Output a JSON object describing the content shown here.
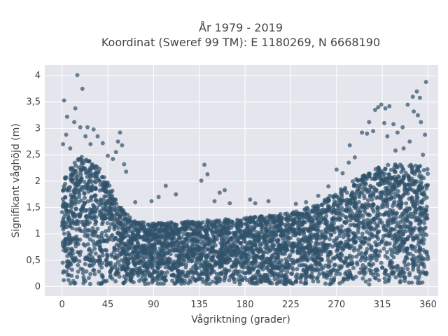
{
  "chart_data": {
    "type": "scatter",
    "title": "År 1979 - 2019",
    "subtitle": "Koordinat (Sweref 99 TM): E 1180269, N 6668190",
    "xlabel": "Vågriktning (grader)",
    "ylabel": "Signifikant våghöjd (m)",
    "xlim": [
      -17,
      370
    ],
    "ylim": [
      -0.18,
      4.2
    ],
    "xticks": [
      0,
      45,
      90,
      135,
      180,
      225,
      270,
      315,
      360
    ],
    "xtick_labels": [
      "0",
      "45",
      "90",
      "135",
      "180",
      "225",
      "270",
      "315",
      "360"
    ],
    "yticks": [
      0,
      0.5,
      1,
      1.5,
      2,
      2.5,
      3,
      3.5,
      4
    ],
    "ytick_labels": [
      "0",
      "0,5",
      "1",
      "1,5",
      "2",
      "2,5",
      "3",
      "3,5",
      "4"
    ],
    "grid": true,
    "marker_color": "#2f5169",
    "plot_background": "#e5e5ee",
    "envelope": [
      {
        "x": 0,
        "y": 2.1
      },
      {
        "x": 10,
        "y": 2.3
      },
      {
        "x": 20,
        "y": 2.5
      },
      {
        "x": 30,
        "y": 2.4
      },
      {
        "x": 40,
        "y": 2.2
      },
      {
        "x": 50,
        "y": 1.8
      },
      {
        "x": 60,
        "y": 1.45
      },
      {
        "x": 70,
        "y": 1.25
      },
      {
        "x": 90,
        "y": 1.2
      },
      {
        "x": 135,
        "y": 1.25
      },
      {
        "x": 180,
        "y": 1.3
      },
      {
        "x": 225,
        "y": 1.4
      },
      {
        "x": 250,
        "y": 1.55
      },
      {
        "x": 270,
        "y": 1.8
      },
      {
        "x": 290,
        "y": 2.05
      },
      {
        "x": 315,
        "y": 2.3
      },
      {
        "x": 340,
        "y": 2.35
      },
      {
        "x": 360,
        "y": 2.25
      }
    ],
    "outliers": [
      {
        "x": 15,
        "y": 4.01
      },
      {
        "x": 20,
        "y": 3.75
      },
      {
        "x": 2,
        "y": 3.53
      },
      {
        "x": 13,
        "y": 3.38
      },
      {
        "x": 5,
        "y": 3.22
      },
      {
        "x": 12,
        "y": 3.12
      },
      {
        "x": 18,
        "y": 3.02
      },
      {
        "x": 25,
        "y": 3.02
      },
      {
        "x": 31,
        "y": 2.98
      },
      {
        "x": 4,
        "y": 2.88
      },
      {
        "x": 35,
        "y": 2.85
      },
      {
        "x": 28,
        "y": 2.7
      },
      {
        "x": 40,
        "y": 2.72
      },
      {
        "x": 1,
        "y": 2.7
      },
      {
        "x": 53,
        "y": 2.55
      },
      {
        "x": 55,
        "y": 2.75
      },
      {
        "x": 57,
        "y": 2.92
      },
      {
        "x": 59,
        "y": 2.68
      },
      {
        "x": 50,
        "y": 2.42
      },
      {
        "x": 61,
        "y": 2.32
      },
      {
        "x": 63,
        "y": 2.18
      },
      {
        "x": 140,
        "y": 2.31
      },
      {
        "x": 143,
        "y": 2.13
      },
      {
        "x": 137,
        "y": 2.01
      },
      {
        "x": 102,
        "y": 1.91
      },
      {
        "x": 112,
        "y": 1.75
      },
      {
        "x": 160,
        "y": 1.83
      },
      {
        "x": 155,
        "y": 1.78
      },
      {
        "x": 150,
        "y": 1.62
      },
      {
        "x": 165,
        "y": 1.58
      },
      {
        "x": 95,
        "y": 1.7
      },
      {
        "x": 88,
        "y": 1.62
      },
      {
        "x": 72,
        "y": 1.6
      },
      {
        "x": 185,
        "y": 1.65
      },
      {
        "x": 190,
        "y": 1.58
      },
      {
        "x": 203,
        "y": 1.62
      },
      {
        "x": 230,
        "y": 1.57
      },
      {
        "x": 240,
        "y": 1.6
      },
      {
        "x": 252,
        "y": 1.72
      },
      {
        "x": 262,
        "y": 1.9
      },
      {
        "x": 270,
        "y": 2.22
      },
      {
        "x": 276,
        "y": 2.15
      },
      {
        "x": 282,
        "y": 2.35
      },
      {
        "x": 288,
        "y": 2.45
      },
      {
        "x": 283,
        "y": 2.68
      },
      {
        "x": 295,
        "y": 2.92
      },
      {
        "x": 300,
        "y": 2.9
      },
      {
        "x": 302,
        "y": 3.12
      },
      {
        "x": 306,
        "y": 2.95
      },
      {
        "x": 308,
        "y": 3.35
      },
      {
        "x": 311,
        "y": 3.4
      },
      {
        "x": 314,
        "y": 3.45
      },
      {
        "x": 318,
        "y": 3.38
      },
      {
        "x": 322,
        "y": 3.42
      },
      {
        "x": 317,
        "y": 3.1
      },
      {
        "x": 326,
        "y": 3.08
      },
      {
        "x": 320,
        "y": 2.85
      },
      {
        "x": 330,
        "y": 2.92
      },
      {
        "x": 335,
        "y": 3.02
      },
      {
        "x": 340,
        "y": 3.45
      },
      {
        "x": 345,
        "y": 3.6
      },
      {
        "x": 349,
        "y": 3.7
      },
      {
        "x": 352,
        "y": 3.58
      },
      {
        "x": 350,
        "y": 3.25
      },
      {
        "x": 346,
        "y": 3.32
      },
      {
        "x": 353,
        "y": 3.12
      },
      {
        "x": 357,
        "y": 2.88
      },
      {
        "x": 358,
        "y": 3.88
      },
      {
        "x": 342,
        "y": 2.75
      },
      {
        "x": 336,
        "y": 2.62
      },
      {
        "x": 355,
        "y": 2.5
      },
      {
        "x": 328,
        "y": 2.58
      },
      {
        "x": 45,
        "y": 2.48
      },
      {
        "x": 8,
        "y": 2.62
      },
      {
        "x": 23,
        "y": 2.85
      }
    ]
  }
}
